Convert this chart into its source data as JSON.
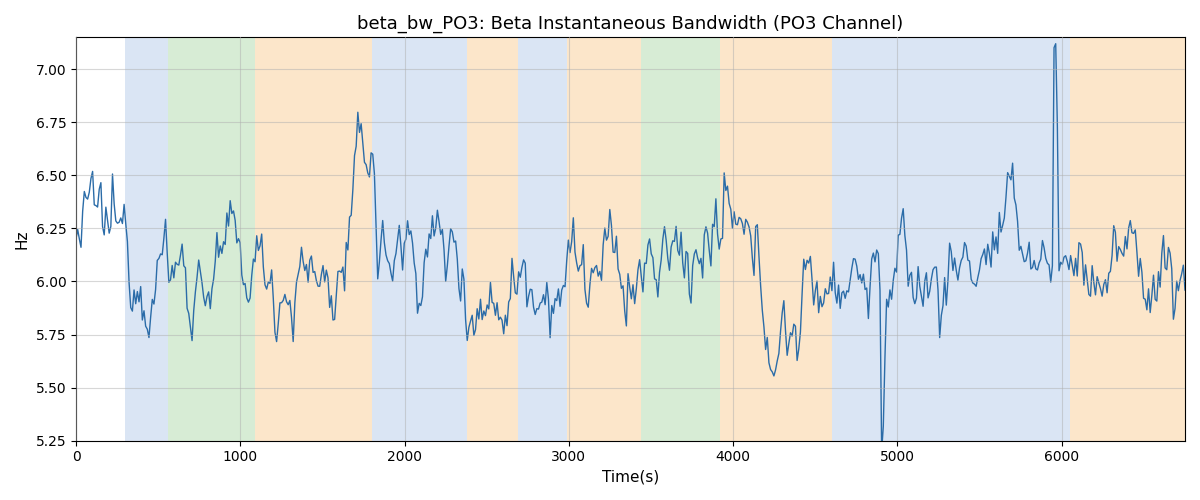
{
  "title": "beta_bw_PO3: Beta Instantaneous Bandwidth (PO3 Channel)",
  "xlabel": "Time(s)",
  "ylabel": "Hz",
  "ylim": [
    5.25,
    7.15
  ],
  "xlim": [
    0,
    6750
  ],
  "line_color": "#2b6ca8",
  "line_width": 1.0,
  "title_fontsize": 13,
  "grid_color": "#b0b0b0",
  "grid_alpha": 0.5,
  "bands": [
    {
      "xmin": 300,
      "xmax": 560,
      "color": "#aec6e8",
      "alpha": 0.45
    },
    {
      "xmin": 560,
      "xmax": 1090,
      "color": "#a8d5a2",
      "alpha": 0.45
    },
    {
      "xmin": 1090,
      "xmax": 1800,
      "color": "#f9c98a",
      "alpha": 0.45
    },
    {
      "xmin": 1800,
      "xmax": 2380,
      "color": "#aec6e8",
      "alpha": 0.45
    },
    {
      "xmin": 2380,
      "xmax": 2690,
      "color": "#f9c98a",
      "alpha": 0.45
    },
    {
      "xmin": 2690,
      "xmax": 2990,
      "color": "#aec6e8",
      "alpha": 0.45
    },
    {
      "xmin": 2990,
      "xmax": 3440,
      "color": "#f9c98a",
      "alpha": 0.45
    },
    {
      "xmin": 3440,
      "xmax": 3920,
      "color": "#a8d5a2",
      "alpha": 0.45
    },
    {
      "xmin": 3920,
      "xmax": 4600,
      "color": "#f9c98a",
      "alpha": 0.45
    },
    {
      "xmin": 4600,
      "xmax": 6050,
      "color": "#aec6e8",
      "alpha": 0.45
    },
    {
      "xmin": 6050,
      "xmax": 6750,
      "color": "#f9c98a",
      "alpha": 0.45
    }
  ],
  "n_points": 670,
  "base_freq": 6.08,
  "ar_coef": 0.82,
  "noise_std": 0.14,
  "slow_amp1": 0.07,
  "slow_period1": 1800,
  "slow_amp2": 0.04,
  "slow_period2": 900,
  "yticks": [
    5.25,
    5.5,
    5.75,
    6.0,
    6.25,
    6.5,
    6.75,
    7.0
  ],
  "xticks": [
    0,
    1000,
    2000,
    3000,
    4000,
    5000,
    6000
  ]
}
